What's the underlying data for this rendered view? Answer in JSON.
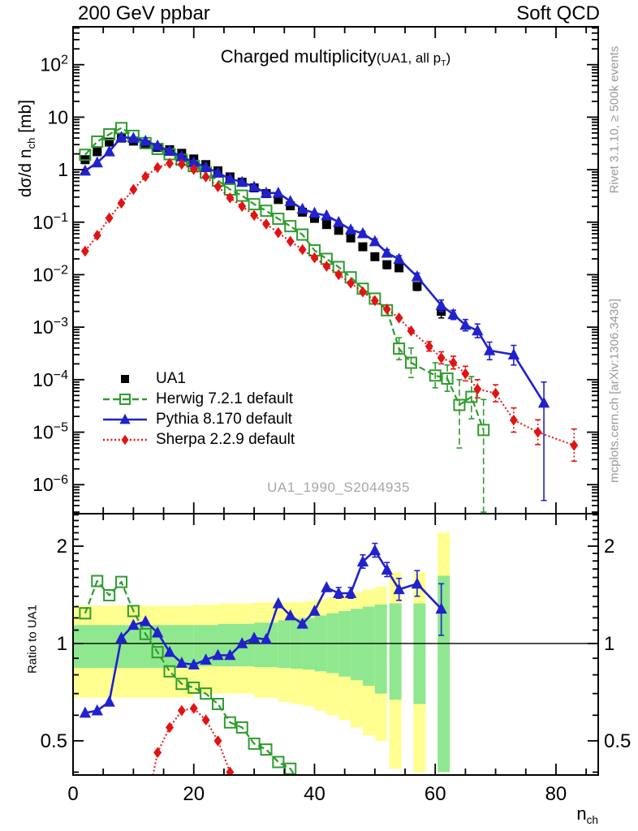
{
  "header": {
    "left": "200 GeV ppbar",
    "right": "Soft QCD"
  },
  "title": {
    "main": "Charged multiplicity",
    "note_pre": "(UA1, all p",
    "note_sub": "T",
    "note_post": ")"
  },
  "axes": {
    "y_main": {
      "pre": "dσ/d n",
      "sub": "ch",
      "post": " [mb]"
    },
    "y_ratio": "Ratio to UA1",
    "x": {
      "pre": "n",
      "sub": "ch"
    }
  },
  "watermark": "UA1_1990_S2044935",
  "side_notes": {
    "top": "Rivet 3.1.10, ≥ 500k events",
    "bottom": "mcplots.cern.ch [arXiv:1306.3436]"
  },
  "legend": {
    "items": [
      {
        "series": "ua1",
        "label": "UA1"
      },
      {
        "series": "herwig",
        "label": "Herwig 7.2.1 default"
      },
      {
        "series": "pythia",
        "label": "Pythia 8.170 default"
      },
      {
        "series": "sherpa",
        "label": "Sherpa 2.2.9 default"
      }
    ]
  },
  "chart_data": {
    "type": "line",
    "title": "Charged multiplicity (UA1, all pT)",
    "xlabel": "n_ch",
    "ylabel_main": "dσ/d n_ch [mb]",
    "ylabel_ratio": "Ratio to UA1",
    "x": {
      "lim": [
        0,
        87
      ],
      "ticks": [
        0,
        20,
        40,
        60,
        80
      ],
      "minor_step": 5,
      "label": "n_ch"
    },
    "panels": {
      "main": {
        "ylog": true,
        "ylim": [
          2.8e-07,
          527
        ],
        "ytick_exps": [
          2,
          1,
          0,
          -1,
          -2,
          -3,
          -4,
          -5,
          -6
        ],
        "series": [
          {
            "id": "ua1",
            "label": "UA1",
            "color": "#000000",
            "line": "none",
            "marker": "square",
            "x": [
              2,
              4,
              6,
              8,
              10,
              12,
              14,
              16,
              18,
              20,
              22,
              24,
              26,
              28,
              30,
              32,
              34,
              36,
              38,
              40,
              42,
              44,
              46,
              48,
              50,
              52,
              54,
              57,
              61
            ],
            "y": [
              1.55,
              2.2,
              3.35,
              4.0,
              3.5,
              3.0,
              2.65,
              2.4,
              2.05,
              1.6,
              1.25,
              0.95,
              0.73,
              0.58,
              0.45,
              0.35,
              0.27,
              0.205,
              0.155,
              0.118,
              0.09,
              0.07,
              0.05,
              0.034,
              0.022,
              0.0155,
              0.0135,
              0.006,
              0.002
            ],
            "err": [
              0,
              0,
              0,
              0,
              0,
              0,
              0,
              0,
              0,
              0,
              0,
              0,
              0,
              0,
              0,
              0,
              0,
              0,
              0,
              0,
              0,
              0,
              0,
              0,
              [
                0.019,
                0.025
              ],
              [
                0.013,
                0.018
              ],
              [
                0.0115,
                0.0155
              ],
              [
                0.005,
                0.007
              ],
              [
                0.0015,
                0.0026
              ]
            ]
          },
          {
            "id": "herwig",
            "label": "Herwig 7.2.1 default",
            "color": "#2e9c2e",
            "line": "dashed",
            "marker": "osquare",
            "x": [
              2,
              4,
              6,
              8,
              10,
              12,
              14,
              16,
              18,
              20,
              22,
              24,
              26,
              28,
              30,
              32,
              34,
              36,
              38,
              40,
              42,
              44,
              46,
              48,
              50,
              52,
              54,
              56,
              60,
              62,
              64,
              66,
              68
            ],
            "y": [
              1.92,
              3.43,
              4.72,
              6.2,
              4.41,
              3.21,
              2.49,
              1.97,
              1.54,
              1.17,
              0.875,
              0.62,
              0.42,
              0.32,
              0.22,
              0.165,
              0.116,
              0.084,
              0.058,
              0.029,
              0.02,
              0.014,
              0.0089,
              0.0054,
              0.0035,
              0.0021,
              0.00039,
              0.00021,
              0.00012,
              0.000105,
              3.3e-05,
              4.7e-05,
              1.1e-05
            ],
            "err": [
              0,
              0,
              0,
              0,
              0,
              0,
              0,
              0,
              0,
              0,
              0,
              0,
              0,
              0,
              0,
              0,
              0,
              0,
              0,
              0,
              0,
              0,
              0,
              0,
              0,
              0,
              [
                0.00024,
                0.00063
              ],
              [
                0.00011,
                0.0004
              ],
              [
                7e-05,
                0.00021
              ],
              [
                6e-05,
                0.00019
              ],
              [
                5e-06,
                0.0001
              ],
              [
                1.8e-05,
                0.000115
              ],
              [
                3e-07,
                4.2e-05
              ]
            ]
          },
          {
            "id": "pythia",
            "label": "Pythia 8.170 default",
            "color": "#2121cd",
            "line": "solid",
            "marker": "triangle",
            "x": [
              2,
              4,
              6,
              8,
              10,
              12,
              14,
              16,
              18,
              20,
              22,
              24,
              26,
              28,
              30,
              32,
              34,
              36,
              38,
              40,
              42,
              44,
              46,
              48,
              50,
              52,
              54,
              57,
              61,
              63,
              65,
              67,
              69,
              73,
              78
            ],
            "y": [
              0.95,
              1.36,
              2.21,
              4.16,
              3.99,
              3.51,
              2.86,
              2.26,
              1.78,
              1.38,
              1.11,
              0.87,
              0.67,
              0.58,
              0.47,
              0.36,
              0.36,
              0.25,
              0.178,
              0.149,
              0.134,
              0.1,
              0.072,
              0.061,
              0.043,
              0.026,
              0.0198,
              0.0092,
              0.0026,
              0.00175,
              0.0011,
              0.00086,
              0.00036,
              0.0003,
              3.6e-05
            ],
            "err": [
              0,
              0,
              0,
              0,
              0,
              0,
              0,
              0,
              0,
              0,
              0,
              0,
              0,
              0,
              0,
              0,
              0,
              0,
              0,
              0,
              0,
              0,
              [
                0.066,
                0.079
              ],
              [
                0.055,
                0.067
              ],
              [
                0.038,
                0.048
              ],
              [
                0.023,
                0.03
              ],
              [
                0.017,
                0.023
              ],
              [
                0.0078,
                0.0107
              ],
              [
                0.002,
                0.0033
              ],
              [
                0.0014,
                0.0021
              ],
              [
                0.00085,
                0.0014
              ],
              [
                0.00063,
                0.00115
              ],
              [
                0.00024,
                0.00052
              ],
              [
                0.00019,
                0.00045
              ],
              [
                5e-07,
                9e-05
              ]
            ]
          },
          {
            "id": "sherpa",
            "label": "Sherpa 2.2.9 default",
            "color": "#e11414",
            "line": "dotted",
            "marker": "diamond",
            "x": [
              2,
              4,
              6,
              8,
              10,
              12,
              14,
              16,
              18,
              20,
              22,
              24,
              26,
              28,
              30,
              32,
              34,
              36,
              38,
              40,
              42,
              44,
              46,
              48,
              50,
              52,
              54,
              56,
              59,
              61,
              63,
              65,
              67,
              70,
              73,
              77,
              83
            ],
            "y": [
              0.028,
              0.056,
              0.12,
              0.23,
              0.42,
              0.74,
              1.1,
              1.32,
              1.27,
              1.01,
              0.73,
              0.475,
              0.29,
              0.2,
              0.135,
              0.092,
              0.063,
              0.043,
              0.03,
              0.021,
              0.0145,
              0.01,
              0.0069,
              0.0047,
              0.0032,
              0.0022,
              0.0015,
              0.00085,
              0.00043,
              0.00026,
              0.00021,
              0.00013,
              6.6e-05,
              5.5e-05,
              1.7e-05,
              1e-05,
              5.6e-06
            ],
            "err": [
              0,
              0,
              0,
              0,
              0,
              0,
              0,
              0,
              0,
              0,
              0,
              0,
              0,
              0,
              0,
              0,
              0,
              0,
              0,
              0,
              0,
              0,
              0,
              0,
              0,
              0,
              0,
              0,
              [
                0.00035,
                0.00053
              ],
              [
                0.0002,
                0.00034
              ],
              [
                0.00016,
                0.00028
              ],
              [
                9.5e-05,
                0.00018
              ],
              [
                4.5e-05,
                0.0001
              ],
              [
                3.8e-05,
                8e-05
              ],
              [
                1e-05,
                2.9e-05
              ],
              [
                5.8e-06,
                1.72e-05
              ],
              [
                2.8e-06,
                1.15e-05
              ]
            ]
          }
        ]
      },
      "ratio": {
        "ylog": true,
        "ylim": [
          0.392,
          2.52
        ],
        "yticks": [
          2,
          1,
          0.5
        ],
        "ref_line": 1,
        "band_colors": {
          "inner": "#8fe88f",
          "outer": "#ffff8f"
        },
        "bands": [
          [
            0,
            20,
            0.68,
            1.31,
            0.84,
            1.14
          ],
          [
            20,
            24,
            0.7,
            1.32,
            0.85,
            1.14
          ],
          [
            24,
            30,
            0.7,
            1.33,
            0.85,
            1.15
          ],
          [
            30,
            34,
            0.68,
            1.34,
            0.845,
            1.16
          ],
          [
            34,
            36,
            0.66,
            1.34,
            0.84,
            1.18
          ],
          [
            36,
            38,
            0.65,
            1.345,
            0.835,
            1.19
          ],
          [
            38,
            40,
            0.64,
            1.35,
            0.83,
            1.2
          ],
          [
            40,
            42,
            0.62,
            1.37,
            0.82,
            1.22
          ],
          [
            42,
            44,
            0.6,
            1.39,
            0.81,
            1.24
          ],
          [
            44,
            46,
            0.58,
            1.41,
            0.79,
            1.26
          ],
          [
            46,
            48,
            0.55,
            1.44,
            0.77,
            1.28
          ],
          [
            48,
            50,
            0.52,
            1.47,
            0.74,
            1.3
          ],
          [
            50,
            52,
            0.5,
            1.5,
            0.7,
            1.32
          ],
          [
            52.4,
            54.4,
            0.41,
            1.66,
            0.67,
            1.33
          ],
          [
            56.4,
            58.4,
            0.4,
            1.66,
            0.65,
            1.33
          ],
          [
            60.4,
            62.4,
            0.4,
            2.2,
            0.4,
            1.62
          ]
        ],
        "series": [
          {
            "id": "herwig",
            "color": "#2e9c2e",
            "line": "dashed",
            "marker": "osquare",
            "x": [
              2,
              4,
              6,
              8,
              10,
              12,
              14,
              16,
              18,
              20,
              22,
              24,
              26,
              28,
              30,
              32,
              34,
              36,
              38
            ],
            "y": [
              1.24,
              1.56,
              1.41,
              1.55,
              1.26,
              1.07,
              0.94,
              0.82,
              0.75,
              0.73,
              0.7,
              0.65,
              0.57,
              0.55,
              0.49,
              0.47,
              0.43,
              0.41,
              0.36
            ],
            "err": []
          },
          {
            "id": "sherpa",
            "color": "#e11414",
            "line": "dotted",
            "marker": "diamond",
            "x": [
              12,
              14,
              16,
              18,
              20,
              22,
              24,
              26,
              28
            ],
            "y": [
              0.3,
              0.46,
              0.55,
              0.62,
              0.63,
              0.58,
              0.5,
              0.4,
              0.28
            ],
            "err": []
          },
          {
            "id": "pythia",
            "color": "#2121cd",
            "line": "solid",
            "marker": "triangle",
            "x": [
              2,
              4,
              6,
              8,
              10,
              12,
              14,
              16,
              18,
              20,
              22,
              24,
              26,
              28,
              30,
              32,
              34,
              36,
              38,
              40,
              42,
              44,
              46,
              48,
              50,
              52,
              54,
              57,
              61
            ],
            "y": [
              0.61,
              0.62,
              0.66,
              1.04,
              1.14,
              1.17,
              1.08,
              0.94,
              0.87,
              0.86,
              0.89,
              0.92,
              0.92,
              1.0,
              1.04,
              1.03,
              1.33,
              1.22,
              1.15,
              1.26,
              1.49,
              1.43,
              1.43,
              1.79,
              1.94,
              1.69,
              1.47,
              1.53,
              1.28
            ],
            "err": [
              0,
              0,
              0,
              0,
              0,
              0,
              0,
              0,
              0,
              0,
              0,
              0,
              0,
              0,
              0,
              0,
              0,
              0,
              0,
              0,
              0,
              [
                1.38,
                1.49
              ],
              [
                1.38,
                1.49
              ],
              [
                1.71,
                1.88
              ],
              [
                1.85,
                2.04
              ],
              [
                1.61,
                1.78
              ],
              [
                1.36,
                1.59
              ],
              [
                1.4,
                1.68
              ],
              [
                1.06,
                1.53
              ]
            ]
          }
        ]
      }
    }
  }
}
